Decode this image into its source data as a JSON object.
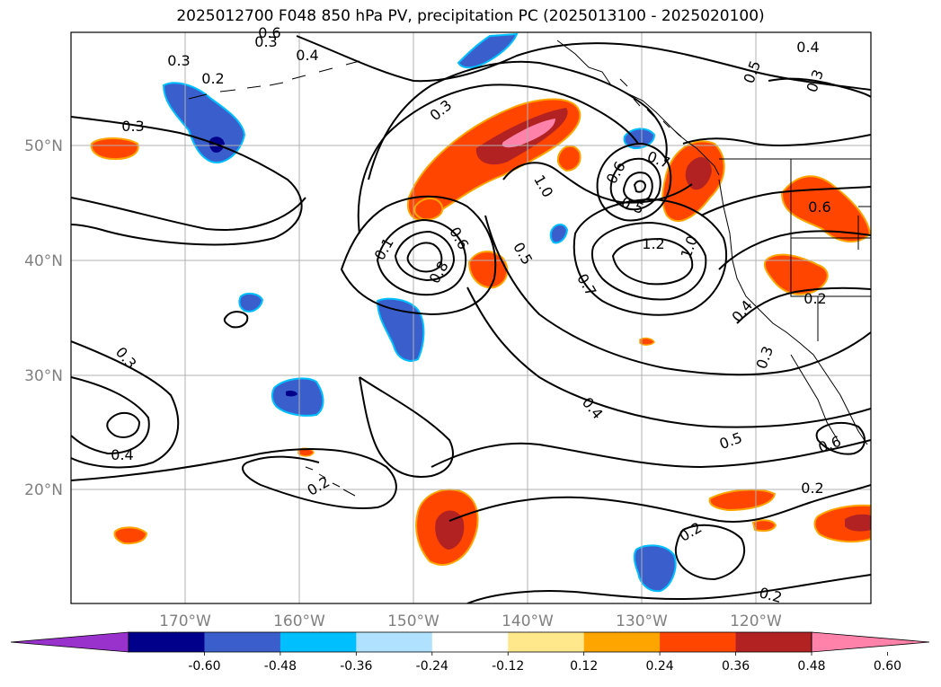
{
  "title": "2025012700 F048 850 hPa PV, precipitation PC (2025013100 - 2025020100)",
  "lat_labels": [
    "50°N",
    "40°N",
    "30°N",
    "20°N"
  ],
  "lon_labels": [
    "170°W",
    "160°W",
    "150°W",
    "140°W",
    "130°W",
    "120°W"
  ],
  "colorbar": {
    "ticks": [
      "-0.60",
      "-0.48",
      "-0.36",
      "-0.24",
      "-0.12",
      "0.12",
      "0.24",
      "0.36",
      "0.48",
      "0.60"
    ],
    "colors": [
      "#9932cc",
      "#00008b",
      "#3a5fcd",
      "#00bfff",
      "#b0e2ff",
      "#ffffff",
      "#ffe88c",
      "#ffa500",
      "#ff4500",
      "#b22222",
      "#ff82ab"
    ]
  },
  "contour_labels": [
    "0.3",
    "0.2",
    "0.3",
    "0.4",
    "0.3",
    "0.6",
    "0.4",
    "0.5",
    "0.3",
    "0.3",
    "0.1",
    "0.6",
    "0.8",
    "0.5",
    "0.7",
    "1.0",
    "0.6",
    "0.5",
    "0.7",
    "1.2",
    "1.0",
    "0.6",
    "0.2",
    "0.4",
    "0.3",
    "0.3",
    "0.4",
    "0.4",
    "0.5",
    "0.6",
    "0.2",
    "0.2",
    "0.2",
    "0.2"
  ],
  "colors": {
    "contour": "#000000",
    "grid": "#b0b0b0",
    "coast": "#000000"
  }
}
